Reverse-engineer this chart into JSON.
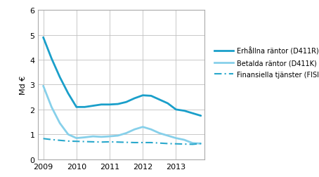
{
  "title": "",
  "ylabel": "Md €",
  "ylim": [
    0,
    6
  ],
  "yticks": [
    0,
    1,
    2,
    3,
    4,
    5,
    6
  ],
  "x_labels": [
    "2009",
    "2010",
    "2011",
    "2012",
    "2013"
  ],
  "x_values": [
    2009.0,
    2009.25,
    2009.5,
    2009.75,
    2010.0,
    2010.25,
    2010.5,
    2010.75,
    2011.0,
    2011.25,
    2011.5,
    2011.75,
    2012.0,
    2012.25,
    2012.5,
    2012.75,
    2013.0,
    2013.25,
    2013.5,
    2013.75
  ],
  "erhallna": [
    4.9,
    4.05,
    3.3,
    2.65,
    2.1,
    2.1,
    2.15,
    2.2,
    2.2,
    2.22,
    2.3,
    2.45,
    2.57,
    2.55,
    2.4,
    2.25,
    2.0,
    1.95,
    1.85,
    1.75
  ],
  "betalda": [
    2.95,
    2.1,
    1.45,
    1.0,
    0.85,
    0.88,
    0.92,
    0.9,
    0.92,
    0.95,
    1.05,
    1.2,
    1.3,
    1.2,
    1.05,
    0.95,
    0.85,
    0.78,
    0.65,
    0.63
  ],
  "fisim": [
    0.83,
    0.79,
    0.76,
    0.73,
    0.72,
    0.71,
    0.7,
    0.69,
    0.7,
    0.69,
    0.68,
    0.67,
    0.67,
    0.67,
    0.65,
    0.63,
    0.62,
    0.61,
    0.6,
    0.63
  ],
  "color_erhallna": "#1a9fca",
  "color_betalda": "#87d0ea",
  "color_fisim": "#29a8cc",
  "legend_labels": [
    "Erhållna räntor (D411R)",
    "Betalda räntor (D411K)",
    "Finansiella tjänster (FISIM)"
  ],
  "background_color": "#ffffff",
  "grid_color": "#c0c0c0",
  "spine_color": "#aaaaaa"
}
